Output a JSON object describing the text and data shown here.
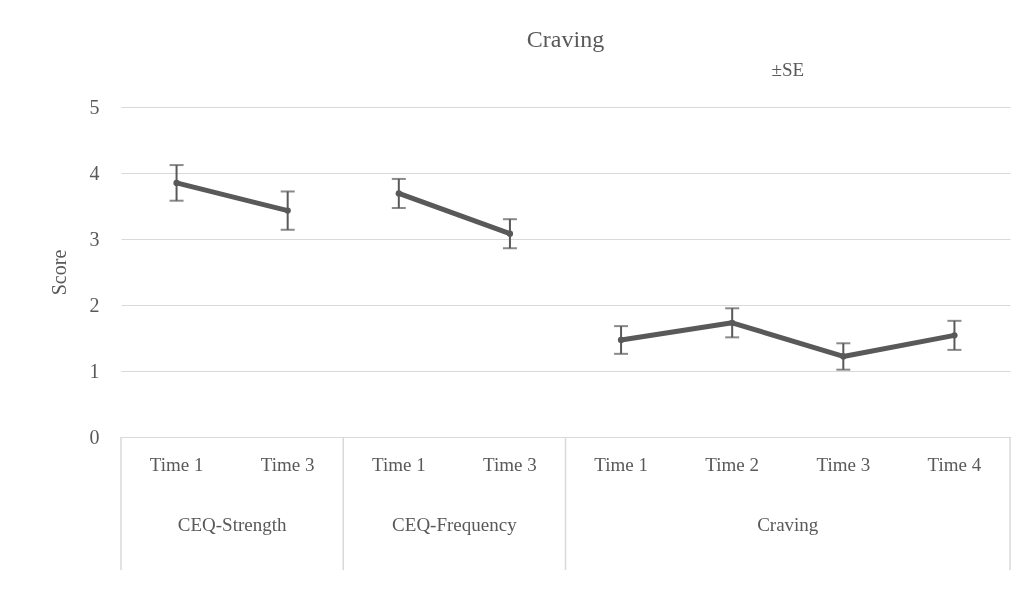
{
  "chart_data": {
    "type": "line",
    "title": "Craving",
    "ylabel": "Score",
    "categories": [
      "Time 1",
      "Time 3",
      "Time 1",
      "Time 3",
      "Time 1",
      "Time 2",
      "Time 3",
      "Time 4"
    ],
    "series": [
      {
        "color": "#595959",
        "values": [
          3.85,
          3.43,
          null,
          null,
          null,
          null,
          null,
          null
        ],
        "errors": [
          0.27,
          0.29,
          null,
          null,
          null,
          null,
          null,
          null
        ]
      },
      {
        "color": "#595959",
        "values": [
          null,
          null,
          3.69,
          3.08,
          null,
          null,
          null,
          null
        ],
        "errors": [
          null,
          null,
          0.22,
          0.22,
          null,
          null,
          null,
          null
        ]
      },
      {
        "color": "#595959",
        "values": [
          null,
          null,
          null,
          null,
          1.47,
          1.73,
          1.22,
          1.54
        ],
        "errors": [
          null,
          null,
          null,
          null,
          0.21,
          0.22,
          0.2,
          0.22
        ]
      }
    ],
    "annotations": [
      "CEQ-Strength",
      "CEQ-Frequency",
      "Craving",
      "±SE"
    ],
    "ylim": [
      0,
      5
    ],
    "yticks": [
      0,
      1,
      2,
      3,
      4,
      5
    ],
    "grid": "y",
    "legend": false,
    "marker": "circle",
    "line_style": "solid"
  }
}
